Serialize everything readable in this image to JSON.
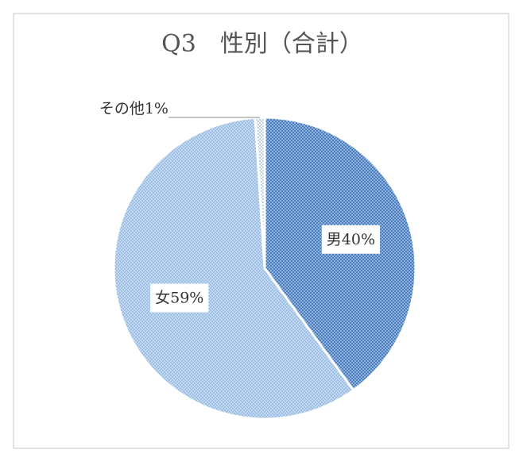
{
  "chart_data": {
    "type": "pie",
    "title": "Q3　性別（合計）",
    "categories": [
      "男",
      "女",
      "その他"
    ],
    "values": [
      40,
      59,
      1
    ],
    "value_labels": [
      "男40%",
      "女59%",
      "その他1%"
    ],
    "colors": [
      "#4a7fc1",
      "#9dbfe6",
      "#ffffff"
    ]
  }
}
